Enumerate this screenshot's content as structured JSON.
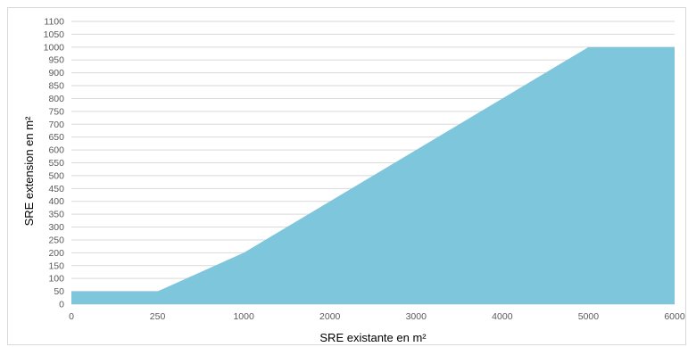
{
  "chart_data": {
    "type": "area",
    "title": "",
    "xlabel": "SRE existante en m²",
    "ylabel": "SRE extension en m²",
    "x_categories": [
      "0",
      "250",
      "1000",
      "2000",
      "3000",
      "4000",
      "5000",
      "6000"
    ],
    "series": [
      {
        "values": [
          50,
          50,
          200,
          400,
          600,
          800,
          1000,
          1000
        ]
      }
    ],
    "ylim": [
      0,
      1100
    ],
    "ytick_step": 50,
    "grid": true,
    "legend": "none",
    "fill_color": "#7ec6db",
    "grid_color": "#d9d9d9"
  }
}
